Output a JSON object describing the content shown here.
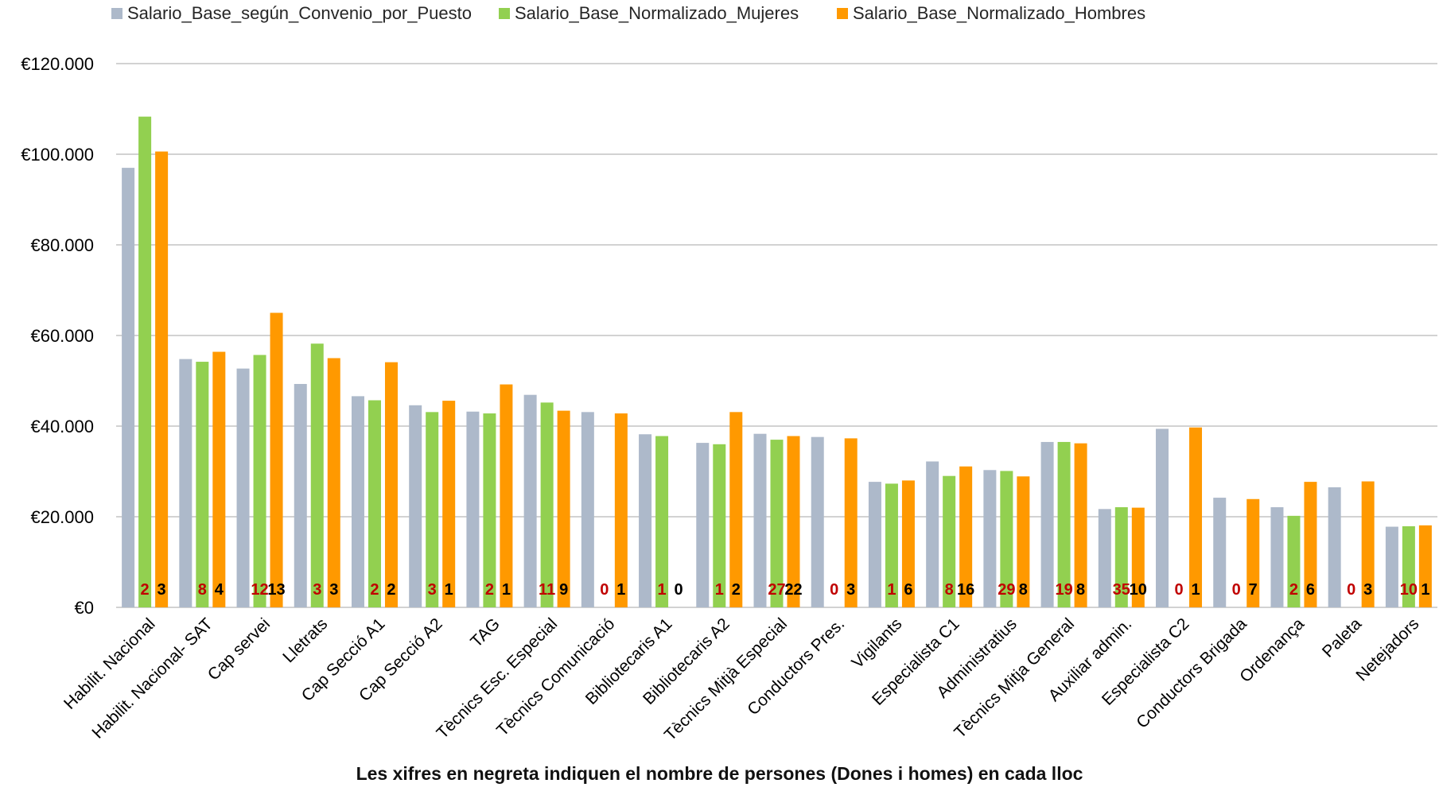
{
  "chart_data": {
    "type": "bar",
    "ylim": [
      0,
      120000
    ],
    "yticks": [
      0,
      20000,
      40000,
      60000,
      80000,
      100000,
      120000
    ],
    "ytick_labels": [
      "€0",
      "€20.000",
      "€40.000",
      "€60.000",
      "€80.000",
      "€100.000",
      "€120.000"
    ],
    "grid": "horizontal",
    "legend_position": "top",
    "note": "Les xifres en negreta indiquen el nombre de persones (Dones i homes) en cada lloc",
    "categories": [
      "Habilit. Nacional",
      "Habilit. Nacional- SAT",
      "Cap servei",
      "Lletrats",
      "Cap Secció A1",
      "Cap Secció A2",
      "TAG",
      "Tècnics Esc. Especial",
      "Tècnics Comunicació",
      "Bibliotecaris A1",
      "Bibliotecaris A2",
      "Tècnics Mitjà Especial",
      "Conductors Pres.",
      "Vigilants",
      "Especialista C1",
      "Administratius",
      "Tècnics Mitja General",
      "Auxiliar admin.",
      "Especialista C2",
      "Conductors Brigada",
      "Ordenança",
      "Paleta",
      "Netejadors"
    ],
    "series": [
      {
        "name": "Salario_Base_según_Convenio_por_Puesto",
        "color": "#adb9ca",
        "values": [
          97000,
          54800,
          52700,
          49300,
          46600,
          44600,
          43200,
          46900,
          43100,
          38200,
          36300,
          38300,
          37600,
          27700,
          32200,
          30300,
          36500,
          21700,
          39400,
          24200,
          22100,
          26500,
          17800
        ]
      },
      {
        "name": "Salario_Base_Normalizado_Mujeres",
        "color": "#92d050",
        "values": [
          108300,
          54200,
          55700,
          58200,
          45700,
          43100,
          42800,
          45200,
          null,
          37800,
          36000,
          37000,
          null,
          27300,
          29000,
          30100,
          36500,
          22100,
          null,
          null,
          20200,
          null,
          17900
        ]
      },
      {
        "name": "Salario_Base_Normalizado_Hombres",
        "color": "#ff9900",
        "values": [
          100600,
          56400,
          65000,
          55000,
          54100,
          45600,
          49200,
          43400,
          42800,
          null,
          43100,
          37800,
          37300,
          28000,
          31100,
          28900,
          36200,
          22000,
          39700,
          23900,
          27700,
          27800,
          18100
        ]
      }
    ],
    "counts_women": [
      "2",
      "8",
      "12",
      "3",
      "2",
      "3",
      "2",
      "11",
      "0",
      "1",
      "1",
      "27",
      "0",
      "1",
      "8",
      "29",
      "19",
      "35",
      "0",
      "0",
      "2",
      "0",
      "10"
    ],
    "counts_men": [
      "3",
      "4",
      "13",
      "3",
      "2",
      "1",
      "1",
      "9",
      "1",
      "0",
      "2",
      "22",
      "3",
      "6",
      "16",
      "8",
      "8",
      "10",
      "1",
      "7",
      "6",
      "3",
      "1"
    ],
    "count_colors": {
      "women": "#c00000",
      "men": "#000000"
    }
  },
  "colors": {
    "grid": "#a6a6a6",
    "axis_text": "#000000"
  }
}
